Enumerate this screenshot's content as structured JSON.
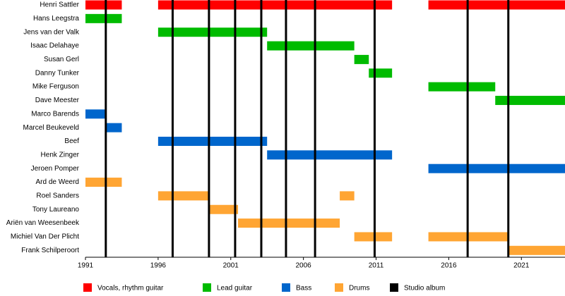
{
  "chart_data": {
    "type": "timeline",
    "categories": [
      "Henri Sattler",
      "Hans Leegstra",
      "Jens van der Valk",
      "Isaac Delahaye",
      "Susan Gerl",
      "Danny Tunker",
      "Mike Ferguson",
      "Dave Meester",
      "Marco Barends",
      "Marcel Beukeveld",
      "Beef",
      "Henk Zinger",
      "Jeroen Pomper",
      "Ard de Weerd",
      "Roel Sanders",
      "Tony Laureano",
      "Ariën van Weesenbeek",
      "Michiel Van Der Plicht",
      "Frank Schilperoort"
    ],
    "series": [
      {
        "name": "Vocals, rhythm guitar",
        "color": "#ff0000",
        "values": [
          [
            [
              1991,
              1993.5
            ],
            [
              1996,
              2012.1
            ],
            [
              2014.6,
              2024
            ]
          ],
          [],
          [],
          [],
          [],
          [],
          [],
          [],
          [],
          [],
          [],
          [],
          [],
          [],
          [],
          [],
          [],
          [],
          []
        ]
      },
      {
        "name": "Lead guitar",
        "color": "#00bb00",
        "values": [
          [],
          [
            [
              1991,
              1993.5
            ]
          ],
          [
            [
              1996,
              2003.5
            ]
          ],
          [
            [
              2003.5,
              2009.5
            ]
          ],
          [
            [
              2009.5,
              2010.5
            ]
          ],
          [
            [
              2010.5,
              2012.1
            ]
          ],
          [
            [
              2014.6,
              2019.2
            ]
          ],
          [
            [
              2019.2,
              2024
            ]
          ],
          [],
          [],
          [],
          [],
          [],
          [],
          [],
          [],
          [],
          [],
          []
        ]
      },
      {
        "name": "Bass",
        "color": "#0066cc",
        "values": [
          [],
          [],
          [],
          [],
          [],
          [],
          [],
          [],
          [
            [
              1991,
              1992.4
            ]
          ],
          [
            [
              1992.4,
              1993.5
            ]
          ],
          [
            [
              1996,
              2003.5
            ]
          ],
          [
            [
              2003.5,
              2012.1
            ]
          ],
          [
            [
              2014.6,
              2024
            ]
          ],
          [],
          [],
          [],
          [],
          [],
          []
        ]
      },
      {
        "name": "Drums",
        "color": "#ffa533",
        "values": [
          [],
          [],
          [],
          [],
          [],
          [],
          [],
          [],
          [],
          [],
          [],
          [],
          [],
          [
            [
              1991,
              1993.5
            ]
          ],
          [
            [
              1996,
              1999.5
            ],
            [
              2008.5,
              2009.5
            ]
          ],
          [
            [
              1999.5,
              2001.5
            ]
          ],
          [
            [
              2001.5,
              2008.5
            ]
          ],
          [
            [
              2009.5,
              2012.1
            ],
            [
              2014.6,
              2020.1
            ]
          ],
          [
            [
              2020.1,
              2024
            ]
          ]
        ]
      }
    ],
    "markers": {
      "name": "Studio album",
      "color": "#000000",
      "values": [
        1992.4,
        1997,
        1999.5,
        2001.3,
        2003.1,
        2004.8,
        2006.8,
        2010.9,
        2017.3,
        2020.1
      ]
    },
    "xlim": [
      1991,
      2024
    ],
    "xticks": [
      1991,
      1996,
      2001,
      2006,
      2011,
      2016,
      2021
    ]
  }
}
